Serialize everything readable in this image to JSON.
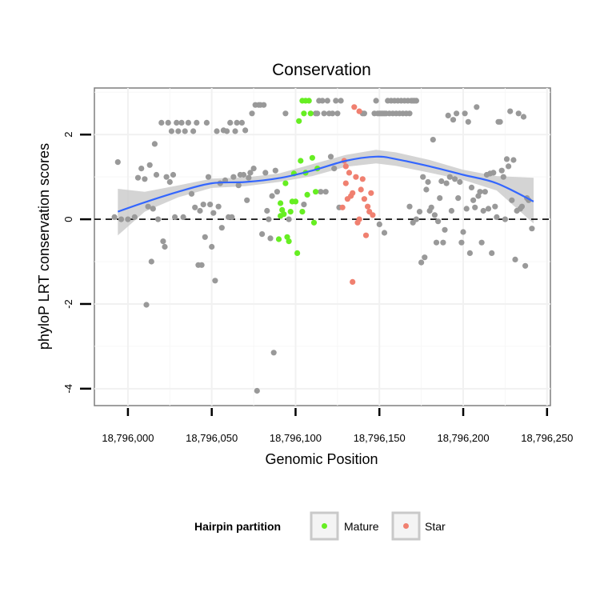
{
  "chart_data": {
    "type": "scatter",
    "title": "Conservation",
    "xlabel": "Genomic Position",
    "ylabel": "phyloP LRT conservation scores",
    "xlim": [
      18795980,
      18796252
    ],
    "ylim": [
      -4.4,
      3.1
    ],
    "x_ticks": [
      {
        "value": 18796000,
        "label": "18,796,000"
      },
      {
        "value": 18796050,
        "label": "18,796,050"
      },
      {
        "value": 18796100,
        "label": "18,796,100"
      },
      {
        "value": 18796150,
        "label": "18,796,150"
      },
      {
        "value": 18796200,
        "label": "18,796,200"
      },
      {
        "value": 18796250,
        "label": "18,796,250"
      }
    ],
    "y_ticks": [
      {
        "value": -4,
        "label": "-4"
      },
      {
        "value": -2,
        "label": "-2"
      },
      {
        "value": 0,
        "label": "0"
      },
      {
        "value": 2,
        "label": "2"
      }
    ],
    "grid": true,
    "reference_line": {
      "y": 0,
      "style": "dashed"
    },
    "legend": {
      "title": "Hairpin partition",
      "position": "bottom",
      "entries": [
        {
          "label": "Mature",
          "color": "#66ee22"
        },
        {
          "label": "Star",
          "color": "#f08070"
        }
      ]
    },
    "colors": {
      "other": "#999999",
      "mature": "#66ee22",
      "star": "#f08070",
      "smooth_line": "#3366ff",
      "confidence_band": "#cccccc"
    },
    "smooth": {
      "x": [
        18795994,
        18796010,
        18796030,
        18796050,
        18796070,
        18796090,
        18796110,
        18796130,
        18796148,
        18796160,
        18796180,
        18796200,
        18796220,
        18796242
      ],
      "y": [
        0.18,
        0.4,
        0.65,
        0.85,
        0.88,
        0.97,
        1.15,
        1.38,
        1.48,
        1.42,
        1.25,
        1.05,
        0.85,
        0.42
      ],
      "band_lower": [
        -0.38,
        0.18,
        0.52,
        0.74,
        0.78,
        0.88,
        1.02,
        1.24,
        1.32,
        1.26,
        1.1,
        0.93,
        0.68,
        -0.1
      ],
      "band_upper": [
        0.72,
        0.65,
        0.8,
        0.96,
        0.99,
        1.08,
        1.3,
        1.52,
        1.64,
        1.58,
        1.4,
        1.17,
        1.02,
        0.98
      ]
    },
    "series": [
      {
        "name": "Mature",
        "points": [
          [
            18796090,
            -0.47
          ],
          [
            18796091,
            0.38
          ],
          [
            18796092,
            0.22
          ],
          [
            18796093,
            0.12
          ],
          [
            18796094,
            0.85
          ],
          [
            18796095,
            -0.42
          ],
          [
            18796096,
            -0.52
          ],
          [
            18796097,
            0.18
          ],
          [
            18796098,
            0.42
          ],
          [
            18796099,
            1.08
          ],
          [
            18796100,
            0.42
          ],
          [
            18796101,
            -0.8
          ],
          [
            18796102,
            2.32
          ],
          [
            18796103,
            1.38
          ],
          [
            18796104,
            0.18
          ],
          [
            18796105,
            2.5
          ],
          [
            18796106,
            2.8
          ],
          [
            18796107,
            0.58
          ],
          [
            18796108,
            2.8
          ],
          [
            18796109,
            2.5
          ],
          [
            18796110,
            1.45
          ],
          [
            18796111,
            -0.08
          ],
          [
            18796112,
            0.65
          ],
          [
            18796113,
            1.2
          ],
          [
            18796091,
            0.08
          ],
          [
            18796106,
            1.1
          ],
          [
            18796104,
            2.8
          ]
        ]
      },
      {
        "name": "Star",
        "points": [
          [
            18796128,
            0.28
          ],
          [
            18796129,
            1.38
          ],
          [
            18796130,
            1.25
          ],
          [
            18796131,
            0.48
          ],
          [
            18796132,
            1.1
          ],
          [
            18796133,
            0.55
          ],
          [
            18796134,
            0.62
          ],
          [
            18796134,
            -1.48
          ],
          [
            18796135,
            2.65
          ],
          [
            18796136,
            1.0
          ],
          [
            18796137,
            -0.08
          ],
          [
            18796138,
            2.55
          ],
          [
            18796139,
            0.7
          ],
          [
            18796140,
            0.95
          ],
          [
            18796141,
            0.48
          ],
          [
            18796142,
            -0.38
          ],
          [
            18796143,
            0.3
          ],
          [
            18796144,
            0.18
          ],
          [
            18796145,
            0.62
          ],
          [
            18796146,
            0.1
          ],
          [
            18796138,
            0.0
          ],
          [
            18796130,
            0.85
          ]
        ]
      },
      {
        "points": [
          [
            18795992,
            0.05
          ],
          [
            18795994,
            1.35
          ],
          [
            18795996,
            0.0
          ],
          [
            18796000,
            0.0
          ],
          [
            18796004,
            0.05
          ],
          [
            18796006,
            0.98
          ],
          [
            18796008,
            1.2
          ],
          [
            18796010,
            0.95
          ],
          [
            18796011,
            -2.02
          ],
          [
            18796012,
            0.3
          ],
          [
            18796013,
            1.28
          ],
          [
            18796014,
            -1.0
          ],
          [
            18796015,
            0.25
          ],
          [
            18796016,
            1.78
          ],
          [
            18796017,
            1.05
          ],
          [
            18796018,
            0.0
          ],
          [
            18796020,
            2.28
          ],
          [
            18796021,
            -0.52
          ],
          [
            18796022,
            -0.65
          ],
          [
            18796023,
            1.0
          ],
          [
            18796024,
            2.28
          ],
          [
            18796025,
            0.88
          ],
          [
            18796026,
            2.08
          ],
          [
            18796027,
            1.05
          ],
          [
            18796028,
            0.05
          ],
          [
            18796029,
            2.28
          ],
          [
            18796030,
            2.08
          ],
          [
            18796032,
            2.28
          ],
          [
            18796033,
            0.05
          ],
          [
            18796034,
            2.08
          ],
          [
            18796036,
            2.28
          ],
          [
            18796038,
            0.6
          ],
          [
            18796039,
            2.08
          ],
          [
            18796040,
            0.28
          ],
          [
            18796041,
            2.28
          ],
          [
            18796042,
            -1.08
          ],
          [
            18796043,
            0.2
          ],
          [
            18796044,
            -1.08
          ],
          [
            18796045,
            0.35
          ],
          [
            18796046,
            -0.42
          ],
          [
            18796047,
            2.28
          ],
          [
            18796048,
            1.0
          ],
          [
            18796049,
            0.35
          ],
          [
            18796050,
            -0.65
          ],
          [
            18796051,
            0.15
          ],
          [
            18796052,
            -1.45
          ],
          [
            18796053,
            2.08
          ],
          [
            18796054,
            0.3
          ],
          [
            18796055,
            0.85
          ],
          [
            18796056,
            -0.2
          ],
          [
            18796057,
            2.1
          ],
          [
            18796058,
            0.92
          ],
          [
            18796059,
            2.08
          ],
          [
            18796060,
            0.05
          ],
          [
            18796061,
            2.28
          ],
          [
            18796062,
            0.05
          ],
          [
            18796063,
            1.0
          ],
          [
            18796064,
            2.08
          ],
          [
            18796065,
            2.28
          ],
          [
            18796066,
            0.8
          ],
          [
            18796067,
            1.05
          ],
          [
            18796068,
            2.28
          ],
          [
            18796069,
            1.05
          ],
          [
            18796070,
            2.1
          ],
          [
            18796071,
            0.45
          ],
          [
            18796072,
            0.98
          ],
          [
            18796073,
            1.1
          ],
          [
            18796074,
            2.5
          ],
          [
            18796075,
            1.2
          ],
          [
            18796076,
            2.7
          ],
          [
            18796077,
            -4.05
          ],
          [
            18796078,
            2.7
          ],
          [
            18796079,
            2.7
          ],
          [
            18796080,
            -0.35
          ],
          [
            18796081,
            2.7
          ],
          [
            18796082,
            1.1
          ],
          [
            18796083,
            0.2
          ],
          [
            18796084,
            0.0
          ],
          [
            18796085,
            -0.45
          ],
          [
            18796086,
            0.55
          ],
          [
            18796087,
            -3.15
          ],
          [
            18796088,
            1.15
          ],
          [
            18796089,
            0.65
          ],
          [
            18796094,
            2.5
          ],
          [
            18796096,
            0.0
          ],
          [
            18796105,
            0.35
          ],
          [
            18796112,
            2.5
          ],
          [
            18796113,
            2.5
          ],
          [
            18796114,
            2.8
          ],
          [
            18796115,
            0.65
          ],
          [
            18796116,
            2.8
          ],
          [
            18796117,
            2.5
          ],
          [
            18796118,
            0.65
          ],
          [
            18796119,
            2.8
          ],
          [
            18796120,
            2.5
          ],
          [
            18796121,
            1.48
          ],
          [
            18796122,
            2.5
          ],
          [
            18796123,
            1.2
          ],
          [
            18796124,
            2.8
          ],
          [
            18796125,
            2.5
          ],
          [
            18796126,
            0.28
          ],
          [
            18796127,
            2.8
          ],
          [
            18796140,
            2.5
          ],
          [
            18796141,
            2.5
          ],
          [
            18796147,
            2.5
          ],
          [
            18796148,
            2.8
          ],
          [
            18796149,
            2.5
          ],
          [
            18796150,
            2.5
          ],
          [
            18796151,
            2.5
          ],
          [
            18796152,
            2.5
          ],
          [
            18796153,
            2.5
          ],
          [
            18796154,
            2.5
          ],
          [
            18796155,
            2.8
          ],
          [
            18796156,
            2.5
          ],
          [
            18796157,
            2.8
          ],
          [
            18796158,
            2.5
          ],
          [
            18796159,
            2.8
          ],
          [
            18796160,
            2.5
          ],
          [
            18796161,
            2.8
          ],
          [
            18796162,
            2.5
          ],
          [
            18796163,
            2.8
          ],
          [
            18796164,
            2.5
          ],
          [
            18796165,
            2.8
          ],
          [
            18796166,
            2.5
          ],
          [
            18796167,
            2.8
          ],
          [
            18796168,
            2.5
          ],
          [
            18796169,
            2.8
          ],
          [
            18796170,
            2.8
          ],
          [
            18796171,
            2.8
          ],
          [
            18796172,
            2.8
          ],
          [
            18796150,
            -0.12
          ],
          [
            18796153,
            -0.32
          ],
          [
            18796168,
            0.3
          ],
          [
            18796170,
            -0.08
          ],
          [
            18796172,
            0.0
          ],
          [
            18796174,
            0.18
          ],
          [
            18796175,
            -1.02
          ],
          [
            18796176,
            1.0
          ],
          [
            18796177,
            -0.9
          ],
          [
            18796178,
            0.7
          ],
          [
            18796179,
            0.88
          ],
          [
            18796180,
            0.2
          ],
          [
            18796181,
            0.28
          ],
          [
            18796182,
            1.88
          ],
          [
            18796183,
            0.1
          ],
          [
            18796184,
            -0.55
          ],
          [
            18796185,
            -0.05
          ],
          [
            18796186,
            0.5
          ],
          [
            18796187,
            0.9
          ],
          [
            18796188,
            -0.55
          ],
          [
            18796189,
            -0.25
          ],
          [
            18796190,
            0.85
          ],
          [
            18796191,
            2.45
          ],
          [
            18796192,
            1.0
          ],
          [
            18796193,
            0.2
          ],
          [
            18796194,
            2.35
          ],
          [
            18796195,
            0.95
          ],
          [
            18796196,
            2.5
          ],
          [
            18796197,
            0.5
          ],
          [
            18796198,
            0.88
          ],
          [
            18796199,
            -0.55
          ],
          [
            18796200,
            -0.3
          ],
          [
            18796201,
            2.5
          ],
          [
            18796202,
            0.25
          ],
          [
            18796203,
            2.3
          ],
          [
            18796204,
            -0.8
          ],
          [
            18796205,
            0.75
          ],
          [
            18796206,
            0.45
          ],
          [
            18796207,
            0.28
          ],
          [
            18796208,
            2.65
          ],
          [
            18796209,
            0.55
          ],
          [
            18796210,
            0.65
          ],
          [
            18796211,
            -0.55
          ],
          [
            18796212,
            0.2
          ],
          [
            18796213,
            0.65
          ],
          [
            18796214,
            1.05
          ],
          [
            18796215,
            0.25
          ],
          [
            18796216,
            1.08
          ],
          [
            18796217,
            -0.8
          ],
          [
            18796218,
            1.1
          ],
          [
            18796219,
            0.3
          ],
          [
            18796220,
            0.05
          ],
          [
            18796221,
            2.3
          ],
          [
            18796222,
            2.3
          ],
          [
            18796223,
            1.15
          ],
          [
            18796224,
            1.0
          ],
          [
            18796225,
            0.0
          ],
          [
            18796226,
            1.42
          ],
          [
            18796227,
            1.25
          ],
          [
            18796228,
            2.55
          ],
          [
            18796229,
            0.45
          ],
          [
            18796230,
            1.4
          ],
          [
            18796231,
            -0.95
          ],
          [
            18796232,
            0.2
          ],
          [
            18796233,
            2.5
          ],
          [
            18796234,
            0.25
          ],
          [
            18796235,
            0.3
          ],
          [
            18796236,
            2.42
          ],
          [
            18796237,
            -1.1
          ],
          [
            18796238,
            0.5
          ],
          [
            18796239,
            0.45
          ],
          [
            18796241,
            -0.22
          ]
        ]
      }
    ]
  }
}
